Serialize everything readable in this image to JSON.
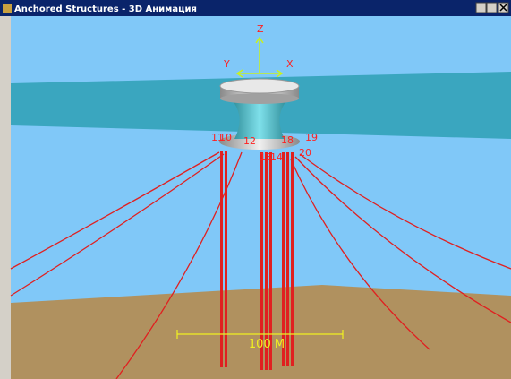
{
  "window": {
    "title": "Anchored Structures - 3D Анимация"
  },
  "scene": {
    "axes": [
      "Z",
      "Y",
      "X"
    ],
    "node_labels": [
      "11",
      "10",
      "12",
      "18",
      "19",
      "13",
      "14",
      "20"
    ],
    "scale_bar": "100 M"
  }
}
